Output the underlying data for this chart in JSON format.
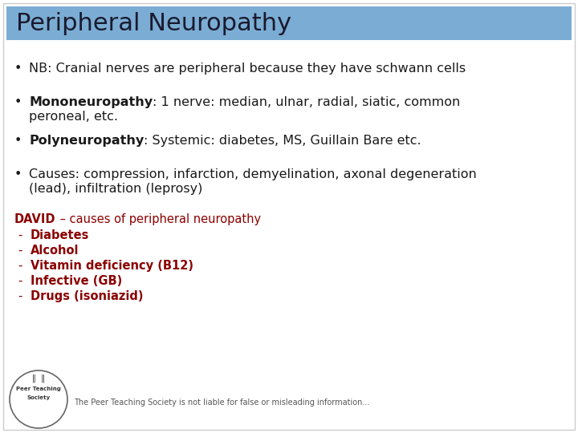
{
  "title": "Peripheral Neuropathy",
  "title_bg_color": "#7BADD4",
  "title_text_color": "#1a1a2e",
  "bg_color": "#ffffff",
  "bullet_color": "#1a1a1a",
  "bullet_font_size": 11.5,
  "david_color": "#8B0000",
  "david_font_size": 10.5,
  "david_item_font_size": 10.5,
  "footer_font_size": 7,
  "david_heading_bold": "DAVID",
  "david_heading_normal": " – causes of peripheral neuropathy",
  "david_items": [
    "Diabetes",
    "Alcohol",
    "Vitamin deficiency (B12)",
    "Infective (GB)",
    "Drugs (isoniazid)"
  ],
  "footer_text": "The Peer Teaching Society is not liable for false or misleading information..."
}
